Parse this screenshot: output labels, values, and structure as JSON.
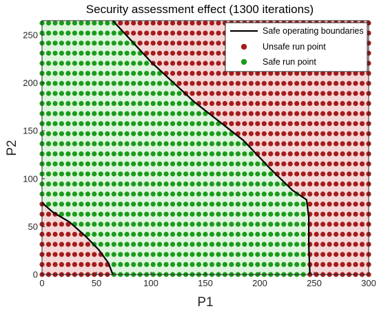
{
  "chart_data": {
    "type": "scatter",
    "title": "Security assessment effect (1300 iterations)",
    "xlabel": "P1",
    "ylabel": "P2",
    "xlim": [
      0,
      300
    ],
    "ylim": [
      0,
      265
    ],
    "xticks": [
      0,
      50,
      100,
      150,
      200,
      250,
      300
    ],
    "yticks": [
      0,
      50,
      100,
      150,
      200,
      250
    ],
    "grid": false,
    "legend_position": "top-right",
    "point_grid": {
      "x_start": 0,
      "x_end": 300,
      "x_step": 6,
      "y_start": 0,
      "y_end": 263,
      "y_step": 10.5
    },
    "regions": {
      "unsafe_fill": "#f5d6d6",
      "safe_fill": "#ddf5dd"
    },
    "series": [
      {
        "name": "Safe operating boundaries",
        "kind": "line",
        "color": "#000000",
        "segments": [
          [
            [
              0,
              75
            ],
            [
              10,
              65
            ],
            [
              25,
              55
            ],
            [
              40,
              40
            ],
            [
              52,
              26
            ],
            [
              61,
              12
            ],
            [
              65,
              0
            ]
          ],
          [
            [
              65,
              265
            ],
            [
              100,
              222
            ],
            [
              140,
              180
            ],
            [
              185,
              140
            ],
            [
              210,
              110
            ],
            [
              230,
              88
            ],
            [
              243,
              78
            ],
            [
              245,
              60
            ],
            [
              245,
              30
            ],
            [
              246,
              0
            ]
          ]
        ]
      },
      {
        "name": "Unsafe run point",
        "kind": "points",
        "color": "#a51c1c"
      },
      {
        "name": "Safe run point",
        "kind": "points",
        "color": "#1c9c1c"
      }
    ]
  }
}
